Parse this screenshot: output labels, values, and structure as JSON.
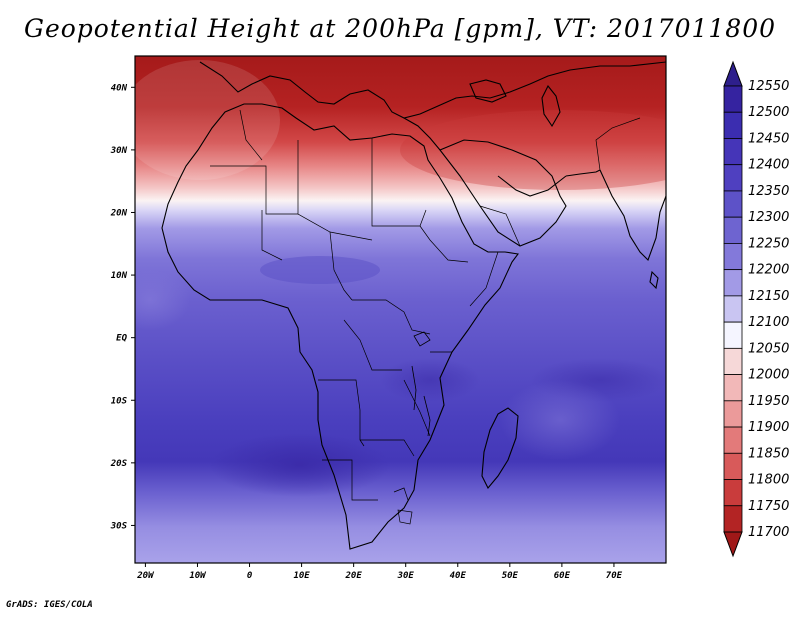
{
  "title": "Geopotential Height at 200hPa [gpm], VT: 2017011800",
  "credit": "GrADS: IGES/COLA",
  "map": {
    "variable": "Geopotential Height",
    "level": "200hPa",
    "units": "gpm",
    "valid_time": "2017011800",
    "lon_range_deg": [
      -22,
      80
    ],
    "lat_range_deg": [
      -36,
      45
    ],
    "lon_ticks": [
      "20W",
      "10W",
      "0",
      "10E",
      "20E",
      "30E",
      "40E",
      "50E",
      "60E",
      "70E"
    ],
    "lat_ticks": [
      "40N",
      "30N",
      "20N",
      "10N",
      "EQ",
      "10S",
      "20S",
      "30S"
    ],
    "coastline_color": "#000000"
  },
  "colorbar": {
    "levels": [
      "12550",
      "12500",
      "12450",
      "12400",
      "12350",
      "12300",
      "12250",
      "12200",
      "12150",
      "12100",
      "12050",
      "12000",
      "11950",
      "11900",
      "11850",
      "11800",
      "11750",
      "11700"
    ],
    "colors": [
      "#2e1f8c",
      "#3523a0",
      "#3b2db0",
      "#4535b8",
      "#4f40c0",
      "#5d52c8",
      "#6e64d0",
      "#8379da",
      "#a29ae6",
      "#c9c5f2",
      "#f5f5ff",
      "#f6d8d8",
      "#f2b8b8",
      "#eb9a9a",
      "#e37a7a",
      "#d85a5a",
      "#c93c3c",
      "#b32424",
      "#a01818"
    ]
  }
}
